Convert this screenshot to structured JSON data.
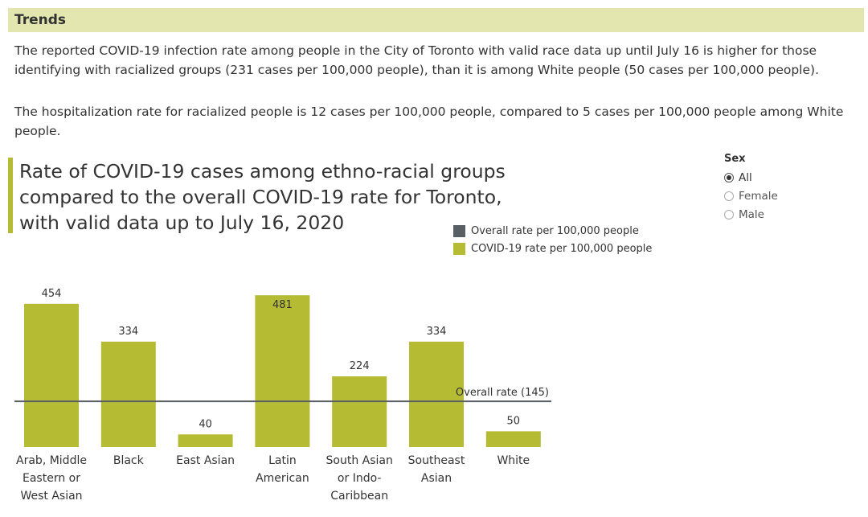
{
  "section": {
    "title": "Trends",
    "paragraph1": "The reported COVID-19 infection rate among people in the City of Toronto with valid race data up until July 16 is higher for those identifying with racialized groups (231 cases per 100,000 people), than it is among White people (50 cases per 100,000 people).",
    "paragraph2": "The hospitalization rate for racialized people is 12 cases per 100,000 people, compared to 5 cases per 100,000 people among White people."
  },
  "filter": {
    "title": "Sex",
    "options": [
      {
        "label": "All",
        "selected": true
      },
      {
        "label": "Female",
        "selected": false
      },
      {
        "label": "Male",
        "selected": false
      }
    ]
  },
  "colors": {
    "bar": "#b6bb34",
    "overall": "#5a5f66",
    "accent": "#b6bb34",
    "header_bg": "#e3e6ae"
  },
  "chart_data": {
    "type": "bar",
    "title": "Rate of COVID-19 cases among ethno-racial groups compared to the overall COVID-19 rate for Toronto, with valid data up to July 16, 2020",
    "legend": [
      {
        "label": "Overall rate per 100,000 people",
        "color": "#5a5f66"
      },
      {
        "label": "COVID-19 rate per 100,000 people",
        "color": "#b6bb34"
      }
    ],
    "categories": [
      [
        "Arab, Middle",
        "Eastern or",
        "West Asian"
      ],
      [
        "Black"
      ],
      [
        "East Asian"
      ],
      [
        "Latin",
        "American"
      ],
      [
        "South Asian",
        "or Indo-",
        "Caribbean"
      ],
      [
        "Southeast",
        "Asian"
      ],
      [
        "White"
      ]
    ],
    "values": [
      454,
      334,
      40,
      481,
      224,
      334,
      50
    ],
    "data_labels": [
      "454",
      "334",
      "40",
      "481",
      "224",
      "334",
      "50"
    ],
    "reference_line": {
      "value": 145,
      "label": "Overall rate (145)"
    },
    "ylim": [
      0,
      481
    ],
    "grid": false,
    "legend_placement": "top-right"
  }
}
